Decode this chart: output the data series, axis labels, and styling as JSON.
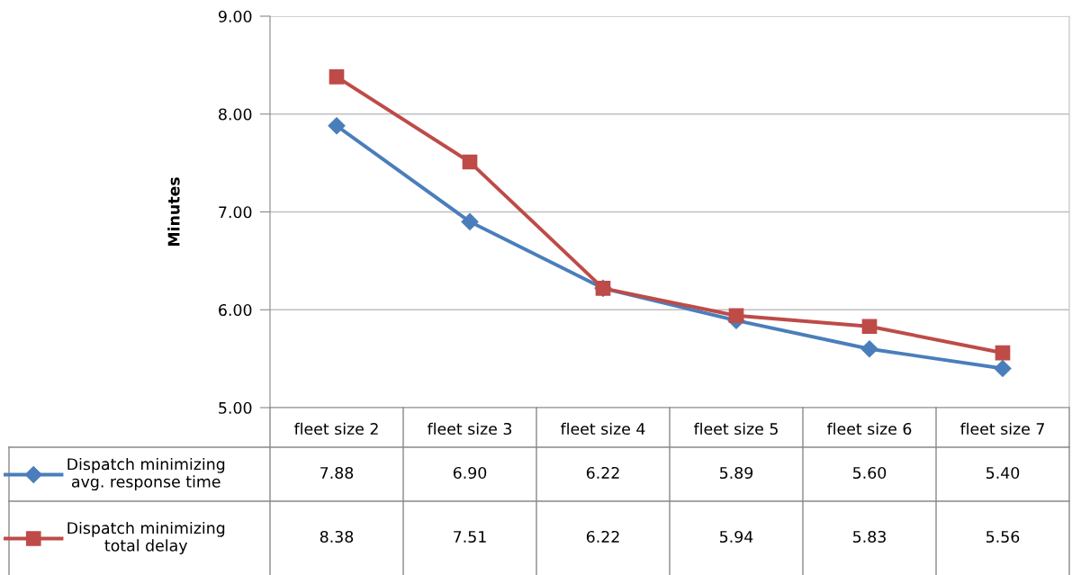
{
  "chart_data": {
    "type": "line",
    "ylabel": "Minutes",
    "categories": [
      "fleet size 2",
      "fleet size 3",
      "fleet size 4",
      "fleet size 5",
      "fleet size 6",
      "fleet size 7"
    ],
    "series": [
      {
        "name": "Dispatch minimizing\navg. response time",
        "color": "#4a7ebb",
        "marker": "diamond",
        "values": [
          7.88,
          6.9,
          6.22,
          5.89,
          5.6,
          5.4
        ],
        "value_labels": [
          "7.88",
          "6.90",
          "6.22",
          "5.89",
          "5.60",
          "5.40"
        ]
      },
      {
        "name": "Dispatch minimizing\ntotal delay",
        "color": "#be4b48",
        "marker": "square",
        "values": [
          8.38,
          7.51,
          6.22,
          5.94,
          5.83,
          5.56
        ],
        "value_labels": [
          "8.38",
          "7.51",
          "6.22",
          "5.94",
          "5.83",
          "5.56"
        ]
      }
    ],
    "ylim": [
      5,
      9
    ],
    "yticks": [
      {
        "value": 5,
        "label": "5.00"
      },
      {
        "value": 6,
        "label": "6.00"
      },
      {
        "value": 7,
        "label": "7.00"
      },
      {
        "value": 8,
        "label": "8.00"
      },
      {
        "value": 9,
        "label": "9.00"
      }
    ],
    "grid": "y",
    "legend": "bottom left",
    "line_style": "solid"
  }
}
